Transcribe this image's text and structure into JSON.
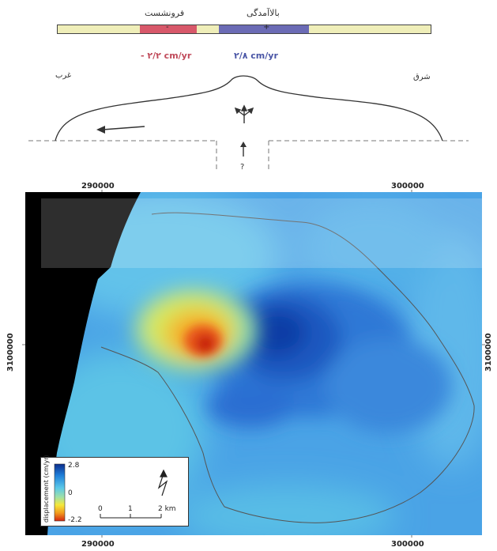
{
  "profile": {
    "subsidence_label": "فرونشست",
    "uplift_label": "بالاآمدگی",
    "minus_sign": "-",
    "plus_sign": "+",
    "subsidence_rate": "- ۲/۲ cm/yr",
    "uplift_rate": "۲/۸ cm/yr",
    "west_label": "غرب",
    "east_label": "شرق",
    "question_mark": "?",
    "colors": {
      "subsidence": "#d8586a",
      "uplift": "#6b6bb5",
      "neutral": "#efeeb9"
    }
  },
  "map": {
    "x_ticks_top": [
      "290000",
      "300000"
    ],
    "x_ticks_bottom": [
      "290000",
      "300000"
    ],
    "y_tick_left": "3100000",
    "y_tick_right": "3100000"
  },
  "legend": {
    "title": "displacement (cm/yr)",
    "max_label": "2.8",
    "mid_label": "0",
    "min_label": "-2.2",
    "scale_labels": [
      "0",
      "1",
      "2 km"
    ],
    "colors": [
      "#0b2d8c",
      "#1f7fd9",
      "#5bc8e8",
      "#9fe0a8",
      "#f5e83a",
      "#f29a1d",
      "#d42410"
    ]
  }
}
